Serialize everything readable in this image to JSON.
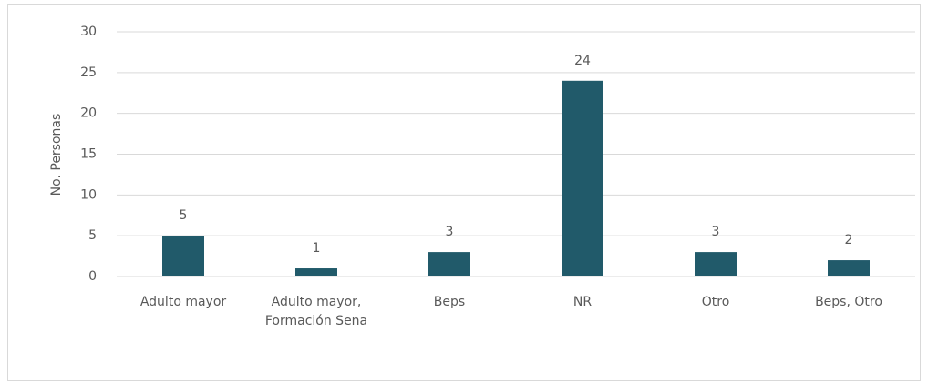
{
  "chart_data": {
    "type": "bar",
    "y_label": "No. Personas",
    "categories": [
      "Adulto mayor",
      "Adulto mayor, Formación Sena",
      "Beps",
      "NR",
      "Otro",
      "Beps, Otro"
    ],
    "values": [
      5,
      1,
      3,
      24,
      3,
      2
    ],
    "color": "#215a6a",
    "ylim": [
      0,
      30
    ],
    "yticks": [
      0,
      5,
      10,
      15,
      20,
      25,
      30
    ],
    "grid": true
  }
}
